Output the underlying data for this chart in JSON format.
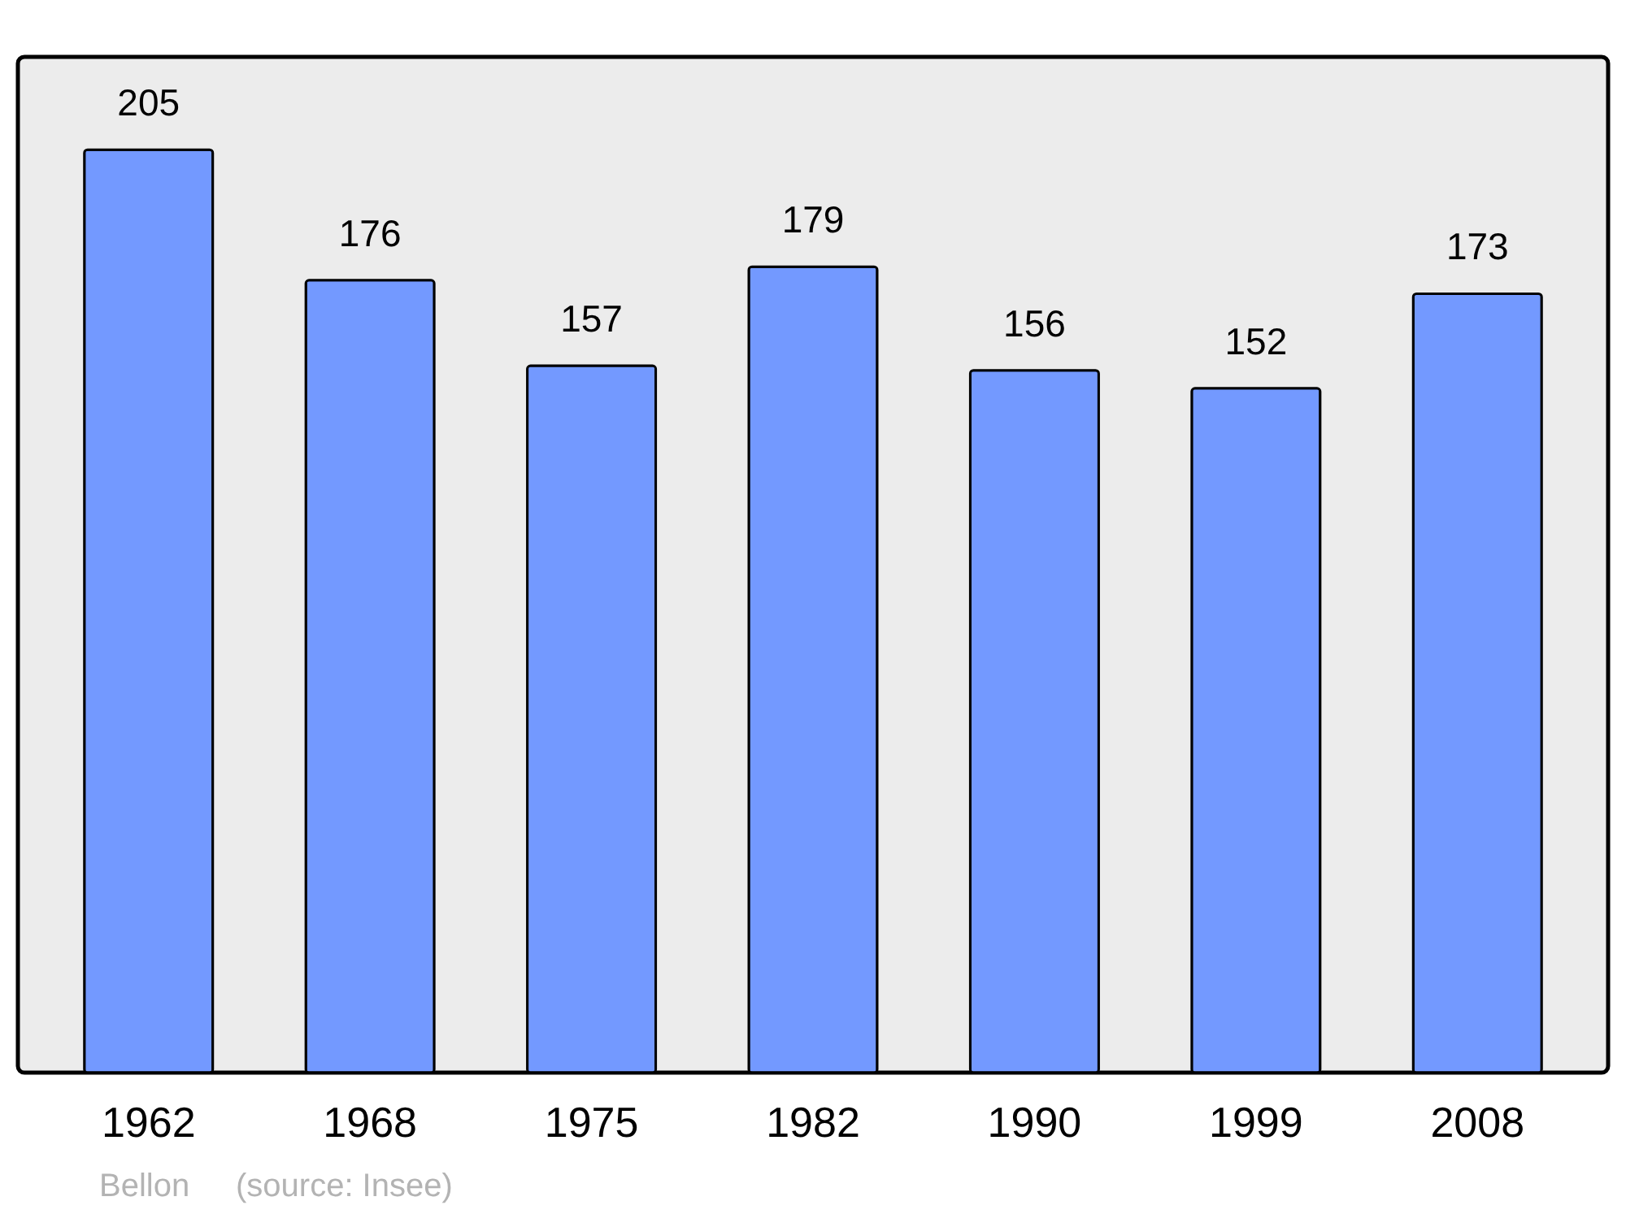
{
  "chart_data": {
    "type": "bar",
    "categories": [
      "1962",
      "1968",
      "1975",
      "1982",
      "1990",
      "1999",
      "2008"
    ],
    "values": [
      205,
      176,
      157,
      179,
      156,
      152,
      173
    ],
    "color": "#7399ff",
    "ylim": [
      0,
      225.6
    ],
    "data_labels": true,
    "grid": false,
    "annotations": [
      "Bellon",
      "(source: Insee)"
    ]
  }
}
